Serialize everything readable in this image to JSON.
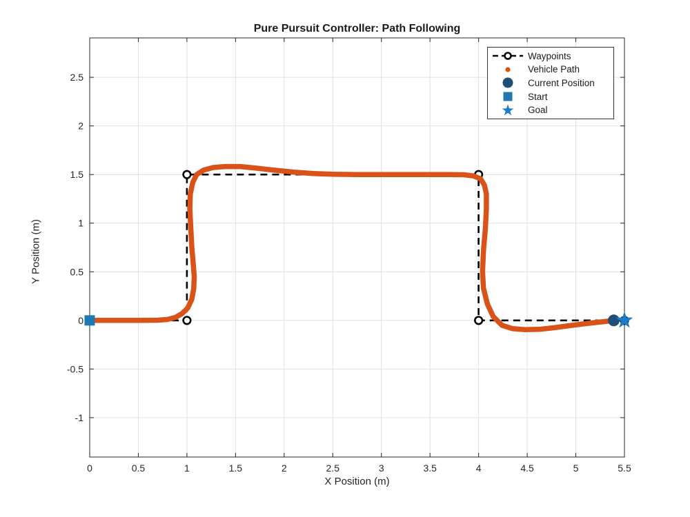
{
  "chart_data": {
    "type": "line",
    "title": "Pure Pursuit Controller: Path Following",
    "xlabel": "X Position (m)",
    "ylabel": "Y Position (m)",
    "xlim": [
      0,
      5.5
    ],
    "ylim": [
      -1.405,
      2.905
    ],
    "x_ticks": [
      0,
      0.5,
      1,
      1.5,
      2,
      2.5,
      3,
      3.5,
      4,
      4.5,
      5,
      5.5
    ],
    "y_ticks": [
      -1,
      -0.5,
      0,
      0.5,
      1,
      1.5,
      2,
      2.5
    ],
    "grid": true,
    "box": true,
    "aspect": "equal",
    "legend_position": "top-right",
    "colors": {
      "waypoints": "#000000",
      "vehicle_path": "#d95319",
      "current_position": "#1f4e79",
      "start": "#1f77b4",
      "goal": "#1b7dc8",
      "grid": "#e0e0e0",
      "axis": "#262626"
    },
    "series": [
      {
        "name": "Waypoints",
        "style": "dashed line with open circle markers",
        "color": "#000000",
        "points": [
          [
            0,
            0
          ],
          [
            1,
            0
          ],
          [
            1,
            1.5
          ],
          [
            4,
            1.5
          ],
          [
            4,
            0
          ],
          [
            5.5,
            0
          ]
        ]
      },
      {
        "name": "Vehicle Path",
        "style": "thick dotted trajectory",
        "color": "#d95319",
        "points": [
          [
            0,
            0
          ],
          [
            0.25,
            0
          ],
          [
            0.5,
            0
          ],
          [
            0.7,
            0.002
          ],
          [
            0.8,
            0.01
          ],
          [
            0.88,
            0.03
          ],
          [
            0.95,
            0.07
          ],
          [
            1.01,
            0.13
          ],
          [
            1.05,
            0.22
          ],
          [
            1.07,
            0.33
          ],
          [
            1.075,
            0.45
          ],
          [
            1.065,
            0.58
          ],
          [
            1.05,
            0.75
          ],
          [
            1.04,
            0.95
          ],
          [
            1.03,
            1.15
          ],
          [
            1.035,
            1.3
          ],
          [
            1.06,
            1.42
          ],
          [
            1.1,
            1.5
          ],
          [
            1.17,
            1.545
          ],
          [
            1.27,
            1.572
          ],
          [
            1.4,
            1.583
          ],
          [
            1.55,
            1.582
          ],
          [
            1.72,
            1.565
          ],
          [
            1.9,
            1.545
          ],
          [
            2.1,
            1.525
          ],
          [
            2.3,
            1.51
          ],
          [
            2.5,
            1.503
          ],
          [
            2.75,
            1.5
          ],
          [
            3.0,
            1.499
          ],
          [
            3.25,
            1.499
          ],
          [
            3.5,
            1.5
          ],
          [
            3.7,
            1.5
          ],
          [
            3.85,
            1.498
          ],
          [
            3.95,
            1.485
          ],
          [
            4.02,
            1.455
          ],
          [
            4.06,
            1.39
          ],
          [
            4.08,
            1.3
          ],
          [
            4.08,
            1.15
          ],
          [
            4.07,
            0.95
          ],
          [
            4.05,
            0.72
          ],
          [
            4.04,
            0.5
          ],
          [
            4.05,
            0.33
          ],
          [
            4.09,
            0.17
          ],
          [
            4.15,
            0.04
          ],
          [
            4.24,
            -0.05
          ],
          [
            4.35,
            -0.085
          ],
          [
            4.48,
            -0.095
          ],
          [
            4.62,
            -0.092
          ],
          [
            4.78,
            -0.075
          ],
          [
            4.95,
            -0.052
          ],
          [
            5.1,
            -0.033
          ],
          [
            5.25,
            -0.016
          ],
          [
            5.35,
            -0.006
          ],
          [
            5.39,
            -0.002
          ]
        ]
      },
      {
        "name": "Current Position",
        "style": "marker",
        "marker": "filled-circle",
        "color": "#1f4e79",
        "points": [
          [
            5.39,
            0
          ]
        ]
      },
      {
        "name": "Start",
        "style": "marker",
        "marker": "filled-square",
        "color": "#1f77b4",
        "points": [
          [
            0,
            0
          ]
        ]
      },
      {
        "name": "Goal",
        "style": "marker",
        "marker": "star",
        "color": "#1b7dc8",
        "points": [
          [
            5.5,
            0
          ]
        ]
      }
    ]
  },
  "legend": {
    "items": [
      {
        "label": "Waypoints",
        "marker": "dashed-line-open-circle",
        "color": "#000000"
      },
      {
        "label": "Vehicle Path",
        "marker": "dot",
        "color": "#d95319"
      },
      {
        "label": "Current Position",
        "marker": "filled-circle",
        "color": "#1f4e79"
      },
      {
        "label": "Start",
        "marker": "filled-square",
        "color": "#1f77b4"
      },
      {
        "label": "Goal",
        "marker": "star",
        "color": "#1b7dc8"
      }
    ]
  }
}
